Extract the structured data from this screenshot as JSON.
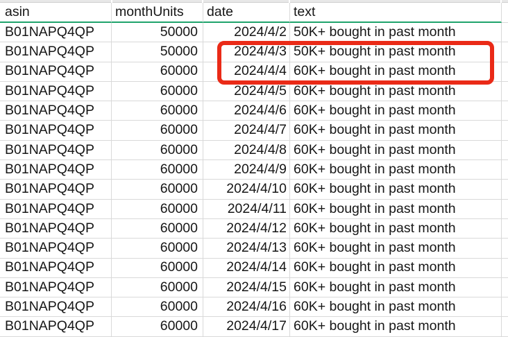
{
  "sheet": {
    "columns": [
      {
        "key": "asin",
        "label": "asin"
      },
      {
        "key": "monthUnits",
        "label": "monthUnits"
      },
      {
        "key": "date",
        "label": "date"
      },
      {
        "key": "text",
        "label": "text"
      }
    ],
    "rows": [
      {
        "asin": "B01NAPQ4QP",
        "monthUnits": "50000",
        "date": "2024/4/2",
        "text": "50K+ bought in past month",
        "highlighted": false
      },
      {
        "asin": "B01NAPQ4QP",
        "monthUnits": "50000",
        "date": "2024/4/3",
        "text": "50K+ bought in past month",
        "highlighted": true
      },
      {
        "asin": "B01NAPQ4QP",
        "monthUnits": "60000",
        "date": "2024/4/4",
        "text": "60K+ bought in past month",
        "highlighted": true
      },
      {
        "asin": "B01NAPQ4QP",
        "monthUnits": "60000",
        "date": "2024/4/5",
        "text": "60K+ bought in past month",
        "highlighted": false
      },
      {
        "asin": "B01NAPQ4QP",
        "monthUnits": "60000",
        "date": "2024/4/6",
        "text": "60K+ bought in past month",
        "highlighted": false
      },
      {
        "asin": "B01NAPQ4QP",
        "monthUnits": "60000",
        "date": "2024/4/7",
        "text": "60K+ bought in past month",
        "highlighted": false
      },
      {
        "asin": "B01NAPQ4QP",
        "monthUnits": "60000",
        "date": "2024/4/8",
        "text": "60K+ bought in past month",
        "highlighted": false
      },
      {
        "asin": "B01NAPQ4QP",
        "monthUnits": "60000",
        "date": "2024/4/9",
        "text": "60K+ bought in past month",
        "highlighted": false
      },
      {
        "asin": "B01NAPQ4QP",
        "monthUnits": "60000",
        "date": "2024/4/10",
        "text": "60K+ bought in past month",
        "highlighted": false
      },
      {
        "asin": "B01NAPQ4QP",
        "monthUnits": "60000",
        "date": "2024/4/11",
        "text": "60K+ bought in past month",
        "highlighted": false
      },
      {
        "asin": "B01NAPQ4QP",
        "monthUnits": "60000",
        "date": "2024/4/12",
        "text": "60K+ bought in past month",
        "highlighted": false
      },
      {
        "asin": "B01NAPQ4QP",
        "monthUnits": "60000",
        "date": "2024/4/13",
        "text": "60K+ bought in past month",
        "highlighted": false
      },
      {
        "asin": "B01NAPQ4QP",
        "monthUnits": "60000",
        "date": "2024/4/14",
        "text": "60K+ bought in past month",
        "highlighted": false
      },
      {
        "asin": "B01NAPQ4QP",
        "monthUnits": "60000",
        "date": "2024/4/15",
        "text": "60K+ bought in past month",
        "highlighted": false
      },
      {
        "asin": "B01NAPQ4QP",
        "monthUnits": "60000",
        "date": "2024/4/16",
        "text": "60K+ bought in past month",
        "highlighted": false
      },
      {
        "asin": "B01NAPQ4QP",
        "monthUnits": "60000",
        "date": "2024/4/17",
        "text": "60K+ bought in past month",
        "highlighted": false
      }
    ]
  },
  "annotation": {
    "shape": "rounded-rectangle",
    "color": "#ea2a17",
    "covers_dates": [
      "2024/4/3",
      "2024/4/4"
    ],
    "covers_columns": [
      "date",
      "text"
    ]
  },
  "colors": {
    "header_underline": "#1ea36b",
    "gridline": "#d9d9d9",
    "column_strip_bg": "#e8e8e8",
    "cell_text": "#161616",
    "annotation_red": "#ea2a17"
  }
}
